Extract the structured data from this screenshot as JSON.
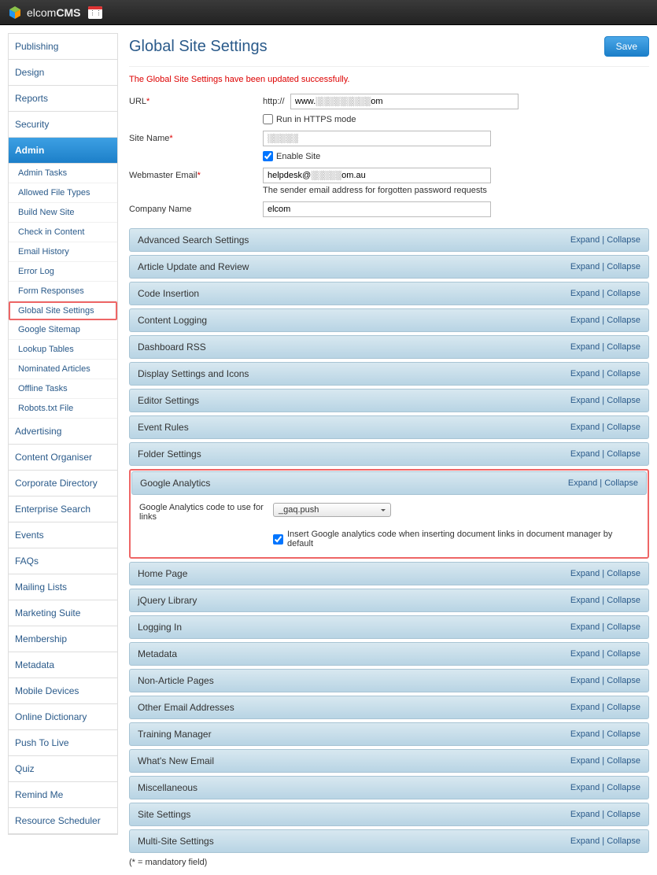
{
  "brand": {
    "prefix": "elcom",
    "suffix": "CMS"
  },
  "sidebar": {
    "sections": [
      {
        "label": "Publishing",
        "active": false
      },
      {
        "label": "Design",
        "active": false
      },
      {
        "label": "Reports",
        "active": false
      },
      {
        "label": "Security",
        "active": false
      },
      {
        "label": "Admin",
        "active": true
      }
    ],
    "admin_items": [
      "Admin Tasks",
      "Allowed File Types",
      "Build New Site",
      "Check in Content",
      "Email History",
      "Error Log",
      "Form Responses",
      "Global Site Settings",
      "Google Sitemap",
      "Lookup Tables",
      "Nominated Articles",
      "Offline Tasks",
      "Robots.txt File"
    ],
    "highlighted_item": "Global Site Settings",
    "lower_sections": [
      "Advertising",
      "Content Organiser",
      "Corporate Directory",
      "Enterprise Search",
      "Events",
      "FAQs",
      "Mailing Lists",
      "Marketing Suite",
      "Membership",
      "Metadata",
      "Mobile Devices",
      "Online Dictionary",
      "Push To Live",
      "Quiz",
      "Remind Me",
      "Resource Scheduler"
    ]
  },
  "page": {
    "title": "Global Site Settings",
    "save_label": "Save",
    "success_msg": "The Global Site Settings have been updated successfully.",
    "footnote": "(* = mandatory field)"
  },
  "form": {
    "url": {
      "label": "URL",
      "required": true,
      "prefix": "http://",
      "value": "www.░░░░░░░░░om"
    },
    "https": {
      "label": "Run in HTTPS mode",
      "checked": false
    },
    "site_name": {
      "label": "Site Name",
      "required": true,
      "value": "░░░░░"
    },
    "enable_site": {
      "label": "Enable Site",
      "checked": true
    },
    "webmaster": {
      "label": "Webmaster Email",
      "required": true,
      "value": "helpdesk@░░░░░om.au",
      "helper": "The sender email address for forgotten password requests"
    },
    "company": {
      "label": "Company Name",
      "required": false,
      "value": "elcom"
    }
  },
  "panels": {
    "expand_label": "Expand",
    "collapse_label": "Collapse",
    "before_ga": [
      "Advanced Search Settings",
      "Article Update and Review",
      "Code Insertion",
      "Content Logging",
      "Dashboard RSS",
      "Display Settings and Icons",
      "Editor Settings",
      "Event Rules",
      "Folder Settings"
    ],
    "ga": {
      "title": "Google Analytics",
      "code_label": "Google Analytics code to use for links",
      "select_value": "_gaq.push",
      "checkbox_label": "Insert Google analytics code when inserting document links in document manager by default",
      "checkbox_checked": true
    },
    "after_ga": [
      "Home Page",
      "jQuery Library",
      "Logging In",
      "Metadata",
      "Non-Article Pages",
      "Other Email Addresses",
      "Training Manager",
      "What's New Email",
      "Miscellaneous",
      "Site Settings",
      "Multi-Site Settings"
    ]
  },
  "colors": {
    "accent": "#1c7fc9",
    "link": "#2a5a8a",
    "highlight_border": "#e66",
    "panel_bg_top": "#d8e8f0",
    "panel_bg_bot": "#b8d4e4",
    "error": "#d00"
  }
}
